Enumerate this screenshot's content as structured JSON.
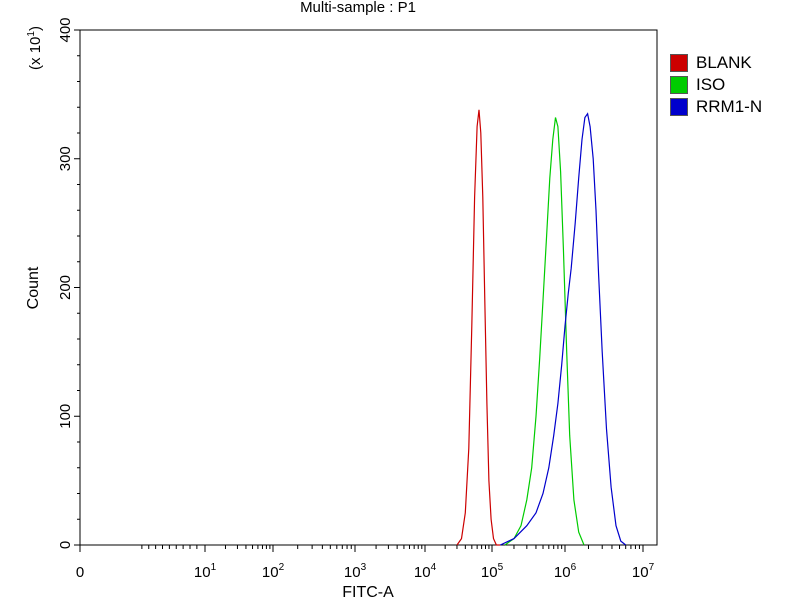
{
  "chart_data": {
    "type": "line",
    "title": "Multi-sample : P1",
    "xlabel": "FITC-A",
    "ylabel": "Count",
    "y_multiplier_label": "(x 10",
    "y_multiplier_exponent": "1",
    "y_multiplier_close": ")",
    "xscale": "log",
    "xlim": [
      0,
      10000000
    ],
    "ylim": [
      0,
      40
    ],
    "yticks": [
      0,
      10,
      20,
      30,
      40
    ],
    "ytick_labels": [
      "0",
      "100",
      "200",
      "300",
      "400"
    ],
    "xtick_labels": [
      {
        "value": 0,
        "base": "0",
        "exp": ""
      },
      {
        "value": 10,
        "base": "10",
        "exp": "1"
      },
      {
        "value": 100,
        "base": "10",
        "exp": "2"
      },
      {
        "value": 1000,
        "base": "10",
        "exp": "3"
      },
      {
        "value": 10000,
        "base": "10",
        "exp": "4"
      },
      {
        "value": 100000,
        "base": "10",
        "exp": "5"
      },
      {
        "value": 1000000,
        "base": "10",
        "exp": "6"
      },
      {
        "value": 10000000,
        "base": "10",
        "exp": "7"
      }
    ],
    "grid": false,
    "legend_position": "right",
    "series": [
      {
        "name": "BLANK",
        "color": "#cc0000",
        "x": [
          30000,
          35000,
          40000,
          45000,
          50000,
          55000,
          60000,
          64000,
          68000,
          73000,
          78000,
          84000,
          90000,
          97000,
          105000,
          115000,
          130000
        ],
        "y": [
          0,
          0.5,
          2.5,
          7.5,
          17,
          27,
          32.5,
          33.8,
          32,
          27,
          19,
          11,
          5,
          2,
          0.5,
          0,
          0
        ]
      },
      {
        "name": "ISO",
        "color": "#00cc00",
        "x": [
          150000,
          200000,
          250000,
          300000,
          350000,
          400000,
          450000,
          500000,
          560000,
          620000,
          680000,
          740000,
          800000,
          870000,
          950000,
          1050000,
          1150000,
          1300000,
          1500000,
          1750000
        ],
        "y": [
          0,
          0.5,
          1.5,
          3.5,
          6,
          10,
          14.5,
          19,
          24,
          28.5,
          31.5,
          33.2,
          32.5,
          29,
          23,
          15,
          8.5,
          3.5,
          1,
          0
        ]
      },
      {
        "name": "RRM1-N",
        "color": "#0000cc",
        "x": [
          130000,
          200000,
          300000,
          400000,
          500000,
          600000,
          700000,
          800000,
          900000,
          1000000,
          1100000,
          1200000,
          1350000,
          1500000,
          1650000,
          1800000,
          1950000,
          2100000,
          2300000,
          2500000,
          2700000,
          3000000,
          3400000,
          3900000,
          4500000,
          5200000,
          6000000
        ],
        "y": [
          0,
          0.5,
          1.5,
          2.5,
          4,
          6,
          8.5,
          11,
          14,
          17,
          19.5,
          21.5,
          25,
          28.5,
          31.5,
          33.2,
          33.5,
          32.5,
          30,
          26,
          21,
          15,
          9,
          4.5,
          1.5,
          0.3,
          0
        ]
      }
    ]
  }
}
